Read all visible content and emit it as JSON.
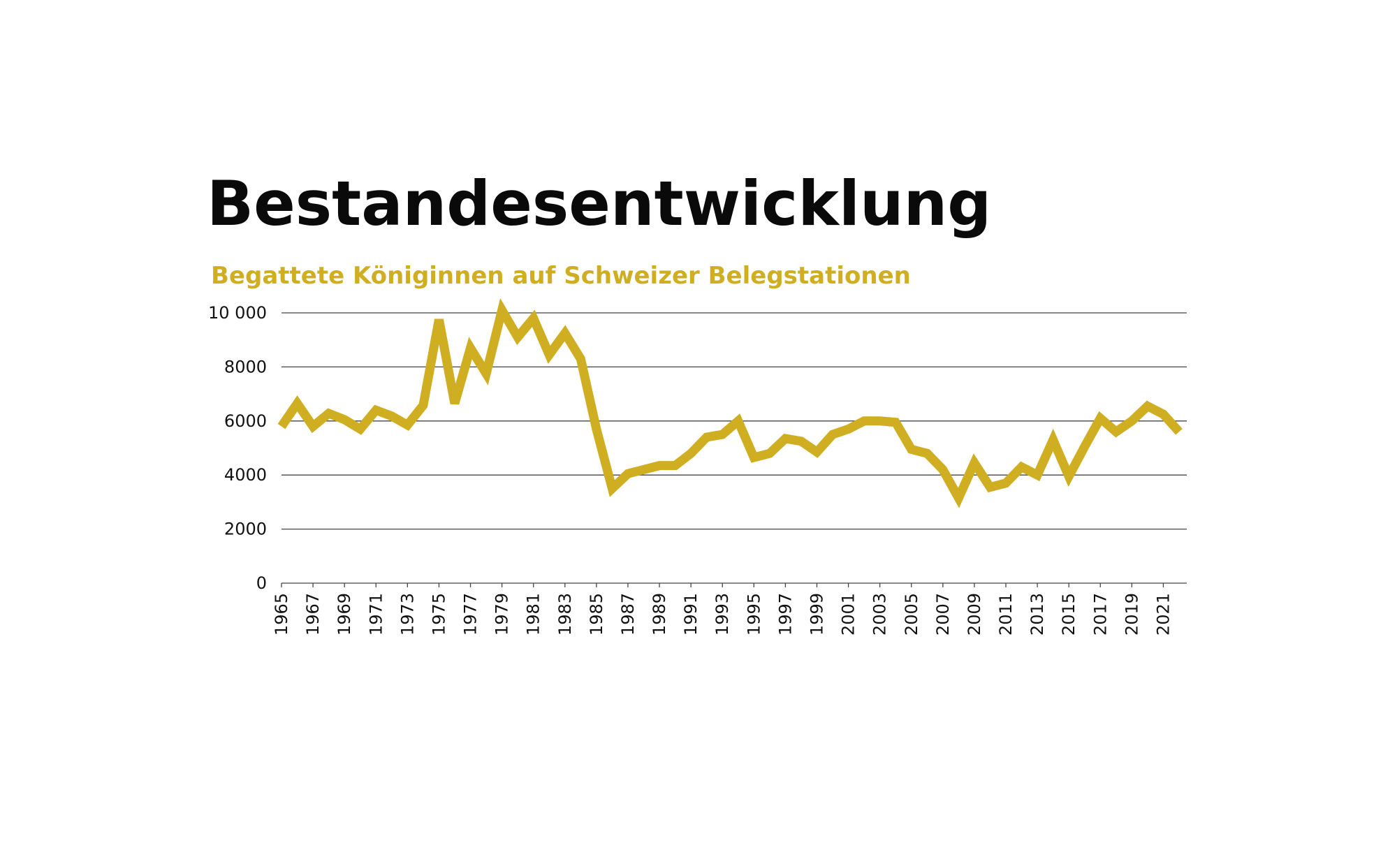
{
  "chart_data": {
    "type": "line",
    "title": "Bestandesentwicklung",
    "subtitle": "Begattete Königinnen auf Schweizer Belegstationen",
    "x": [
      1965,
      1966,
      1967,
      1968,
      1969,
      1970,
      1971,
      1972,
      1973,
      1974,
      1975,
      1976,
      1977,
      1978,
      1979,
      1980,
      1981,
      1982,
      1983,
      1984,
      1985,
      1986,
      1987,
      1988,
      1989,
      1990,
      1991,
      1992,
      1993,
      1994,
      1995,
      1996,
      1997,
      1998,
      1999,
      2000,
      2001,
      2002,
      2003,
      2004,
      2005,
      2006,
      2007,
      2008,
      2009,
      2010,
      2011,
      2012,
      2013,
      2014,
      2015,
      2016,
      2017,
      2018,
      2019,
      2020,
      2021,
      2022
    ],
    "values": [
      5800,
      6650,
      5800,
      6280,
      6050,
      5700,
      6400,
      6180,
      5850,
      6580,
      9750,
      6650,
      8700,
      7750,
      10100,
      9100,
      9800,
      8450,
      9250,
      8300,
      5700,
      3500,
      4050,
      4200,
      4350,
      4350,
      4800,
      5400,
      5500,
      6000,
      4650,
      4800,
      5350,
      5250,
      4850,
      5500,
      5700,
      6000,
      6000,
      5950,
      4950,
      4800,
      4200,
      3150,
      4450,
      3550,
      3700,
      4300,
      4000,
      5300,
      3950,
      5050,
      6100,
      5600,
      6000,
      6550,
      6250,
      5600
    ],
    "color": "#cfae22",
    "xlim": [
      1965,
      2022
    ],
    "xticks": [
      1965,
      1967,
      1969,
      1971,
      1973,
      1975,
      1977,
      1979,
      1981,
      1983,
      1985,
      1987,
      1989,
      1991,
      1993,
      1995,
      1997,
      1999,
      2001,
      2003,
      2005,
      2007,
      2009,
      2011,
      2013,
      2015,
      2017,
      2019,
      2021
    ],
    "ylim": [
      0,
      10000
    ],
    "yticks": [
      0,
      2000,
      4000,
      6000,
      8000,
      {
        "value": 10000,
        "label": "10 000"
      }
    ],
    "grid": true
  }
}
